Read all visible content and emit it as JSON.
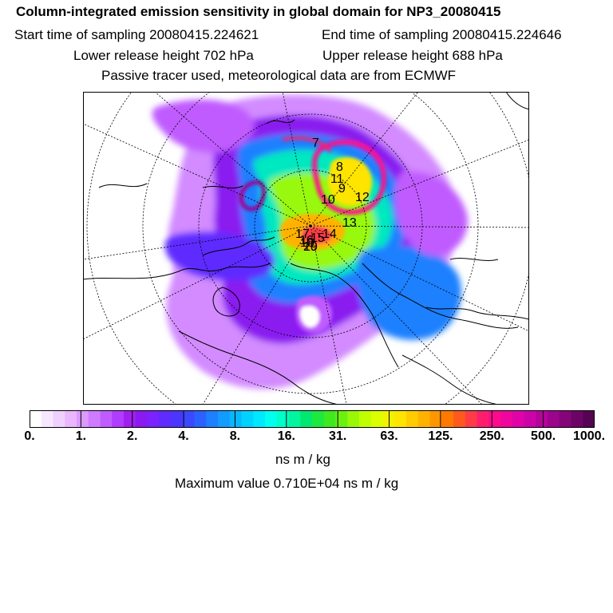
{
  "header": {
    "title": "Column-integrated emission sensitivity in global domain for NP3_20080415",
    "start_time": "Start time of sampling 20080415.224621",
    "end_time": "End time of sampling 20080415.224646",
    "lower_release": "Lower release height  702 hPa",
    "upper_release": "Upper release height  688 hPa",
    "tracer_note": "Passive tracer used, meteorological data are from ECMWF"
  },
  "colorbar": {
    "tick_labels": [
      "0.",
      "1.",
      "2.",
      "4.",
      "8.",
      "16.",
      "31.",
      "63.",
      "125.",
      "250.",
      "500.",
      "1000."
    ],
    "unit": "ns m / kg",
    "colors": [
      "#ffffff",
      "#f7e8ff",
      "#f0d0ff",
      "#e9b6ff",
      "#dd99ff",
      "#cf7bff",
      "#c05cff",
      "#b03cff",
      "#a020f0",
      "#8a1af0",
      "#7a22ff",
      "#5f2bff",
      "#4a36ff",
      "#3a48ff",
      "#2b62ff",
      "#1d80ff",
      "#129cff",
      "#08b8ff",
      "#00d2ff",
      "#00e8ff",
      "#00ffee",
      "#00ffc8",
      "#00f59e",
      "#00e870",
      "#1ce840",
      "#40e820",
      "#6cf010",
      "#98f808",
      "#c0ff00",
      "#dcff00",
      "#f2f200",
      "#ffe400",
      "#ffcc00",
      "#ffb300",
      "#ff9600",
      "#ff7800",
      "#ff5a1e",
      "#ff3c46",
      "#ff1e6e",
      "#ff0a8c",
      "#f0069c",
      "#e004a8",
      "#cc04a8",
      "#b4049c",
      "#9c048c",
      "#84047a",
      "#6c0466",
      "#540452"
    ]
  },
  "chart_data": {
    "type": "heatmap",
    "title": "Column-integrated emission sensitivity in global domain for NP3_20080415",
    "colorbar_levels": [
      0,
      1,
      2,
      4,
      8,
      16,
      31,
      63,
      125,
      250,
      500,
      1000
    ],
    "colorbar_unit": "ns m / kg",
    "max_value_text": "Maximum value  0.710E+04 ns m / kg",
    "trajectory_labels": [
      "7",
      "8",
      "9",
      "10",
      "11",
      "12",
      "13",
      "14",
      "15",
      "16",
      "17",
      "18",
      "19",
      "20"
    ],
    "projection": "north polar stereographic"
  }
}
